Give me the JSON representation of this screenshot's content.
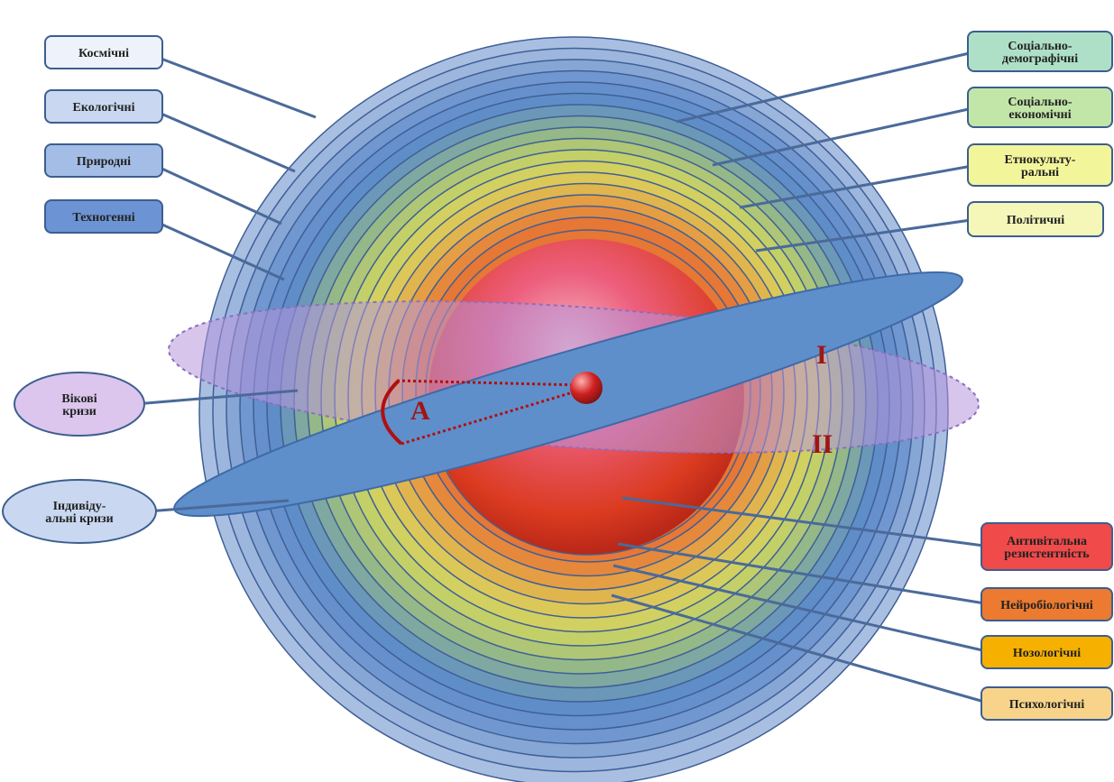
{
  "left_labels": [
    {
      "lines": [
        "Космічні"
      ]
    },
    {
      "lines": [
        "Екологічні"
      ]
    },
    {
      "lines": [
        "Природні"
      ]
    },
    {
      "lines": [
        "Техногенні"
      ]
    }
  ],
  "right_labels": [
    {
      "lines": [
        "Соціально-",
        "демографічні"
      ]
    },
    {
      "lines": [
        "Соціально-",
        "економічні"
      ]
    },
    {
      "lines": [
        "Етнокульту-",
        "ральні"
      ]
    },
    {
      "lines": [
        "Політичні"
      ]
    }
  ],
  "bottom_labels": [
    {
      "lines": [
        "Антивітальна",
        "резистентність"
      ]
    },
    {
      "lines": [
        "Нейробіологічні"
      ]
    },
    {
      "lines": [
        "Нозологічні"
      ]
    },
    {
      "lines": [
        "Психологічні"
      ]
    }
  ],
  "plane_labels": [
    {
      "lines": [
        "Вікові",
        "кризи"
      ]
    },
    {
      "lines": [
        "Індивіду-",
        "альні кризи"
      ]
    }
  ],
  "markers": [
    "A",
    "I",
    "II"
  ]
}
